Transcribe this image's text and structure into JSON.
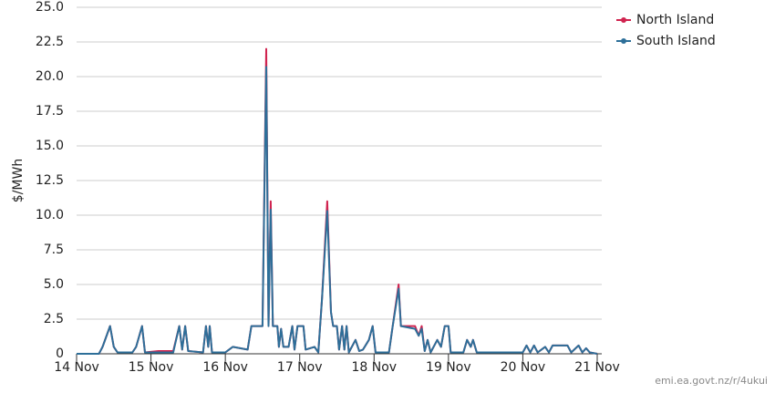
{
  "chart_data": {
    "type": "line",
    "y_label": "$/MWh",
    "source": "emi.ea.govt.nz/r/4ukui",
    "x": [
      0,
      0.3,
      0.35,
      0.45,
      0.5,
      0.55,
      0.75,
      0.8,
      0.88,
      0.92,
      1.1,
      1.3,
      1.38,
      1.42,
      1.46,
      1.5,
      1.7,
      1.74,
      1.77,
      1.79,
      1.82,
      2.0,
      2.1,
      2.3,
      2.35,
      2.5,
      2.55,
      2.58,
      2.61,
      2.64,
      2.7,
      2.72,
      2.75,
      2.78,
      2.85,
      2.9,
      2.93,
      2.97,
      3.05,
      3.08,
      3.2,
      3.25,
      3.3,
      3.37,
      3.42,
      3.45,
      3.5,
      3.53,
      3.57,
      3.6,
      3.63,
      3.66,
      3.75,
      3.8,
      3.85,
      3.93,
      3.98,
      4.02,
      4.2,
      4.25,
      4.33,
      4.36,
      4.55,
      4.6,
      4.64,
      4.68,
      4.72,
      4.76,
      4.85,
      4.9,
      4.95,
      5.0,
      5.03,
      5.2,
      5.25,
      5.3,
      5.33,
      5.38,
      6.0,
      6.05,
      6.1,
      6.15,
      6.2,
      6.3,
      6.35,
      6.4,
      6.6,
      6.65,
      6.75,
      6.8,
      6.85,
      6.9,
      7.0
    ],
    "series": [
      {
        "name": "North Island",
        "color": "#d0234f",
        "values": [
          0,
          0,
          0.5,
          2.0,
          0.5,
          0.1,
          0.1,
          0.5,
          2.0,
          0.1,
          0.2,
          0.2,
          2.0,
          0.3,
          2.0,
          0.2,
          0.1,
          2.0,
          0.5,
          2.0,
          0.1,
          0.1,
          0.5,
          0.3,
          2.0,
          2.0,
          22.0,
          2.0,
          11.0,
          2.0,
          2.0,
          0.5,
          1.8,
          0.5,
          0.5,
          2.0,
          0.3,
          2.0,
          2.0,
          0.3,
          0.5,
          0.1,
          4.0,
          11.0,
          3.0,
          2.0,
          2.0,
          0.3,
          2.0,
          0.3,
          2.0,
          0.1,
          1.0,
          0.2,
          0.3,
          1.0,
          2.0,
          0.1,
          0.1,
          2.0,
          5.0,
          2.0,
          2.0,
          1.3,
          2.0,
          0.2,
          1.0,
          0.1,
          1.0,
          0.5,
          2.0,
          2.0,
          0.1,
          0.1,
          1.0,
          0.5,
          1.0,
          0.1,
          0.1,
          0.6,
          0.1,
          0.6,
          0.1,
          0.5,
          0.1,
          0.6,
          0.6,
          0.1,
          0.6,
          0.1,
          0.4,
          0.1,
          0
        ]
      },
      {
        "name": "South Island",
        "color": "#2d6f99",
        "values": [
          0,
          0,
          0.5,
          2.0,
          0.5,
          0.1,
          0.1,
          0.5,
          2.0,
          0.1,
          0.1,
          0.1,
          2.0,
          0.3,
          2.0,
          0.2,
          0.1,
          2.0,
          0.5,
          2.0,
          0.1,
          0.1,
          0.5,
          0.3,
          2.0,
          2.0,
          20.7,
          2.0,
          10.4,
          2.0,
          2.0,
          0.5,
          1.8,
          0.5,
          0.5,
          2.0,
          0.3,
          2.0,
          2.0,
          0.3,
          0.5,
          0.1,
          4.0,
          10.3,
          3.0,
          2.0,
          2.0,
          0.3,
          2.0,
          0.3,
          2.0,
          0.1,
          1.0,
          0.2,
          0.3,
          1.0,
          2.0,
          0.1,
          0.1,
          2.0,
          4.7,
          2.0,
          1.8,
          1.3,
          1.8,
          0.2,
          1.0,
          0.1,
          1.0,
          0.5,
          2.0,
          2.0,
          0.1,
          0.1,
          1.0,
          0.5,
          1.0,
          0.1,
          0.1,
          0.6,
          0.1,
          0.6,
          0.1,
          0.5,
          0.1,
          0.6,
          0.6,
          0.1,
          0.6,
          0.1,
          0.4,
          0.1,
          0
        ]
      }
    ],
    "xlim": [
      0,
      7
    ],
    "xticks": [
      {
        "value": 0,
        "label": "14 Nov"
      },
      {
        "value": 1,
        "label": "15 Nov"
      },
      {
        "value": 2,
        "label": "16 Nov"
      },
      {
        "value": 3,
        "label": "17 Nov"
      },
      {
        "value": 4,
        "label": "18 Nov"
      },
      {
        "value": 5,
        "label": "19 Nov"
      },
      {
        "value": 6,
        "label": "20 Nov"
      },
      {
        "value": 7,
        "label": "21 Nov"
      }
    ],
    "ylim": [
      0,
      25
    ],
    "yticks": [
      0,
      2.5,
      {
        "value": 5,
        "label": "5.0"
      },
      7.5,
      {
        "value": 10,
        "label": "10.0"
      },
      12.5,
      {
        "value": 15,
        "label": "15.0"
      },
      17.5,
      {
        "value": 20,
        "label": "20.0"
      },
      22.5,
      {
        "value": 25,
        "label": "25.0"
      }
    ],
    "grid": true,
    "legend": "top-right"
  }
}
